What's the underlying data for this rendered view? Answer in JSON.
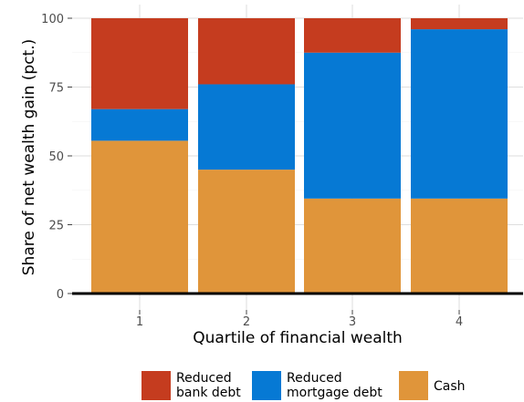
{
  "chart_data": {
    "type": "bar",
    "stacked": true,
    "categories": [
      "1",
      "2",
      "3",
      "4"
    ],
    "xlabel": "Quartile of financial wealth",
    "ylabel": "Share of net wealth gain (pct.)",
    "ylim": [
      0,
      100
    ],
    "yticks": [
      0,
      25,
      50,
      75,
      100
    ],
    "grid": true,
    "legend_position": "bottom",
    "series": [
      {
        "name": "Cash",
        "color": "#E0953A",
        "values": [
          55.5,
          45,
          34.5,
          34.5
        ]
      },
      {
        "name": "Reduced mortgage debt",
        "color": "#0679D4",
        "values": [
          11.5,
          31,
          53,
          61.5
        ]
      },
      {
        "name": "Reduced bank debt",
        "color": "#C53C1F",
        "values": [
          33,
          24,
          12.5,
          4
        ]
      }
    ],
    "legend": [
      {
        "series": 2,
        "lines": [
          "Reduced",
          "bank debt"
        ]
      },
      {
        "series": 1,
        "lines": [
          "Reduced",
          "mortgage debt"
        ]
      },
      {
        "series": 0,
        "lines": [
          "Cash"
        ]
      }
    ]
  }
}
